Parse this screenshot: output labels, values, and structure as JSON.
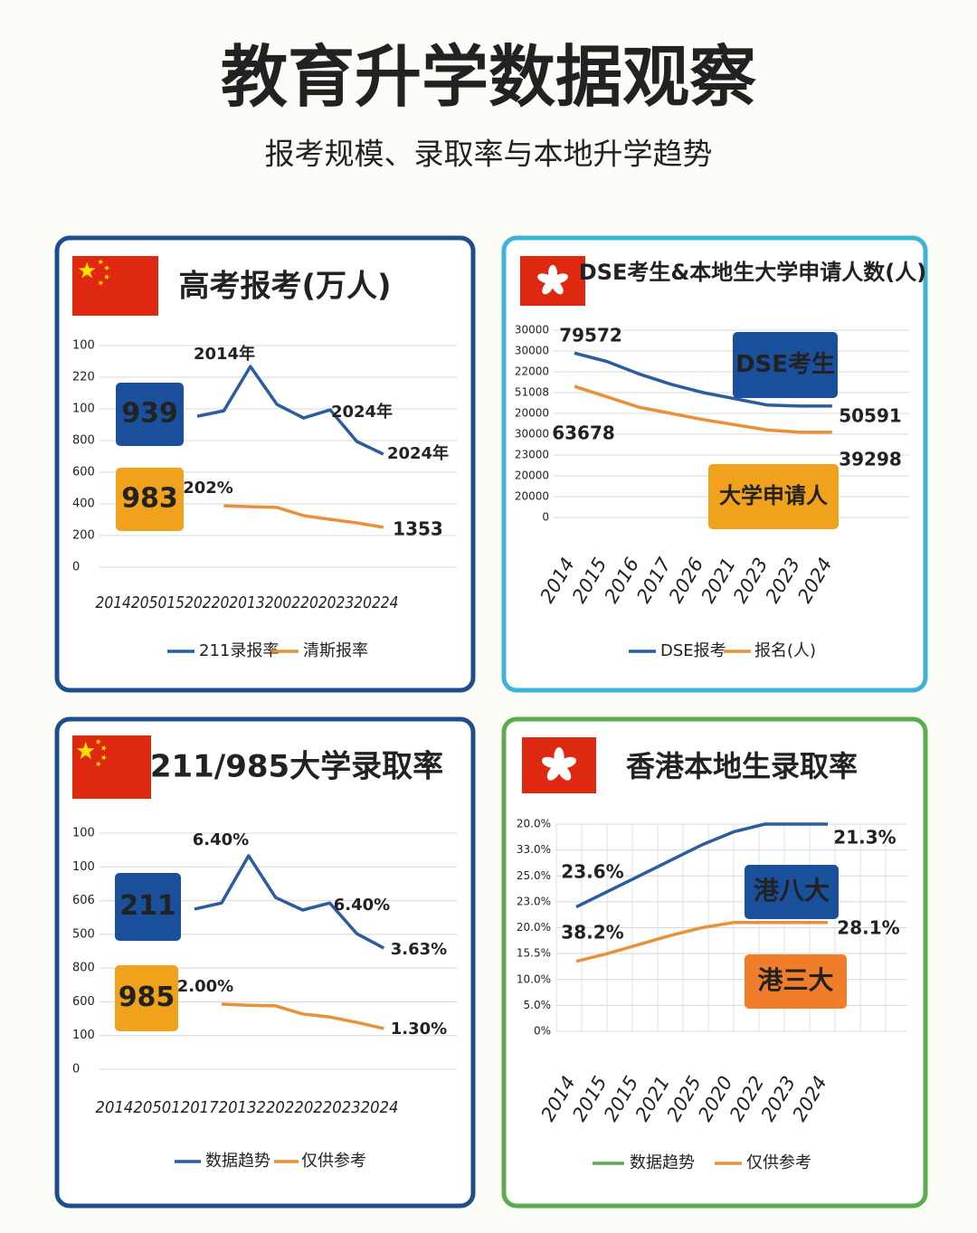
{
  "header": {
    "title": "教育升学数据观察",
    "subtitle": "报考规模、录取率与本地升学趋势"
  },
  "chart_data": [
    {
      "type": "line",
      "title": "高考报考(万人)",
      "border_color": "#1f4e8c",
      "grid": true,
      "categories": [
        null,
        null,
        null,
        null,
        null,
        null,
        null,
        null
      ],
      "x_axis_text": "2014205015202202013200220202320224",
      "ylim": [
        0,
        7
      ],
      "yticks": [
        0,
        {
          "value": 1,
          "label": "200"
        },
        {
          "value": 2,
          "label": "400"
        },
        {
          "value": 3,
          "label": "600"
        },
        {
          "value": 4,
          "label": "800"
        },
        {
          "value": 5,
          "label": "100"
        },
        {
          "value": 6,
          "label": "220"
        },
        {
          "value": 7,
          "label": "100"
        }
      ],
      "series": [
        {
          "name": "211录报率",
          "color": "#2a5d9f",
          "values": [
            4.77,
            4.94,
            6.34,
            5.14,
            4.71,
            4.97,
            3.97,
            3.57
          ]
        },
        {
          "name": "清斯报率",
          "color": "#e8913a",
          "values": [
            null,
            1.94,
            1.91,
            1.89,
            1.63,
            1.51,
            1.4,
            1.26
          ]
        }
      ],
      "annotations": [
        "939",
        "983",
        "2014年",
        "2024年",
        "2024年",
        "202%",
        "1353"
      ]
    },
    {
      "type": "line",
      "title": "DSE考生&本地生大学申请人数(人)",
      "border_color": "#3db4d6",
      "grid": true,
      "categories": [
        "2014",
        "2015",
        "2016",
        "2017",
        "2026",
        "2021",
        "2023",
        "2023",
        "2024"
      ],
      "ylim": [
        0,
        9
      ],
      "yticks": [
        0,
        {
          "value": 1,
          "label": "20000"
        },
        {
          "value": 2,
          "label": "20000"
        },
        {
          "value": 3,
          "label": "23000"
        },
        {
          "value": 4,
          "label": "30000"
        },
        {
          "value": 5,
          "label": "20000"
        },
        {
          "value": 6,
          "label": "51008"
        },
        {
          "value": 7,
          "label": "22000"
        },
        {
          "value": 8,
          "label": "30000"
        },
        {
          "value": 9,
          "label": "30000"
        }
      ],
      "series": [
        {
          "name": "DSE报考",
          "color": "#2a5d9f",
          "values": [
            7.9,
            7.5,
            6.9,
            6.4,
            6.0,
            5.7,
            5.4,
            5.35,
            5.35
          ]
        },
        {
          "name": "报名(人)",
          "color": "#e8913a",
          "values": [
            6.3,
            5.8,
            5.3,
            5.0,
            4.7,
            4.45,
            4.2,
            4.1,
            4.1
          ]
        }
      ],
      "annotations": [
        "79572",
        "63678",
        "50591",
        "39298",
        "DSE考生",
        "大学申请人"
      ]
    },
    {
      "type": "line",
      "title": "211/985大学录取率",
      "border_color": "#1f4e8c",
      "grid": true,
      "categories": [
        null,
        null,
        null,
        null,
        null,
        null,
        null,
        null
      ],
      "x_axis_text": "20142050120172013220220220232024",
      "ylim": [
        0,
        7
      ],
      "yticks": [
        0,
        {
          "value": 1,
          "label": "100"
        },
        {
          "value": 2,
          "label": "600"
        },
        {
          "value": 3,
          "label": "800"
        },
        {
          "value": 4,
          "label": "500"
        },
        {
          "value": 5,
          "label": "606"
        },
        {
          "value": 6,
          "label": "100"
        },
        {
          "value": 7,
          "label": "100"
        }
      ],
      "series": [
        {
          "name": "数据趋势",
          "color": "#2a5d9f",
          "values": [
            4.75,
            4.93,
            6.33,
            5.09,
            4.72,
            4.93,
            4.02,
            3.59
          ]
        },
        {
          "name": "仅供参考",
          "color": "#e8913a",
          "values": [
            null,
            1.93,
            1.9,
            1.88,
            1.64,
            1.55,
            1.39,
            1.21
          ]
        }
      ],
      "annotations": [
        "211",
        "985",
        "6.40%",
        "6.40%",
        "3.63%",
        "2.00%",
        "1.30%"
      ]
    },
    {
      "type": "line",
      "title": "香港本地生录取率",
      "border_color": "#5aac4c",
      "grid": "both",
      "categories": [
        "2014",
        "2015",
        "2015",
        "2021",
        "2025",
        "2020",
        "2022",
        "2023",
        "2024"
      ],
      "ylim": [
        0,
        8
      ],
      "yticks": [
        {
          "value": 0,
          "label": "0%"
        },
        {
          "value": 1,
          "label": "5.0%"
        },
        {
          "value": 2,
          "label": "10.0%"
        },
        {
          "value": 3,
          "label": "15.5%"
        },
        {
          "value": 4,
          "label": "20.0%"
        },
        {
          "value": 5,
          "label": "23.0%"
        },
        {
          "value": 6,
          "label": "25.0%"
        },
        {
          "value": 7,
          "label": "33.0%"
        },
        {
          "value": 8,
          "label": "20.0%"
        }
      ],
      "series": [
        {
          "name": "数据趋势",
          "color": "#2a5d9f",
          "legend_color": "#5aac4c",
          "values": [
            4.8,
            5.4,
            6.0,
            6.6,
            7.2,
            7.7,
            8.0,
            8.0,
            8.0
          ]
        },
        {
          "name": "仅供参考",
          "color": "#e8913a",
          "values": [
            2.7,
            3.0,
            3.35,
            3.7,
            4.0,
            4.2,
            4.2,
            4.2,
            4.2
          ]
        }
      ],
      "annotations": [
        "23.6%",
        "38.2%",
        "21.3%",
        "28.1%",
        "港八大",
        "港三大"
      ]
    }
  ]
}
